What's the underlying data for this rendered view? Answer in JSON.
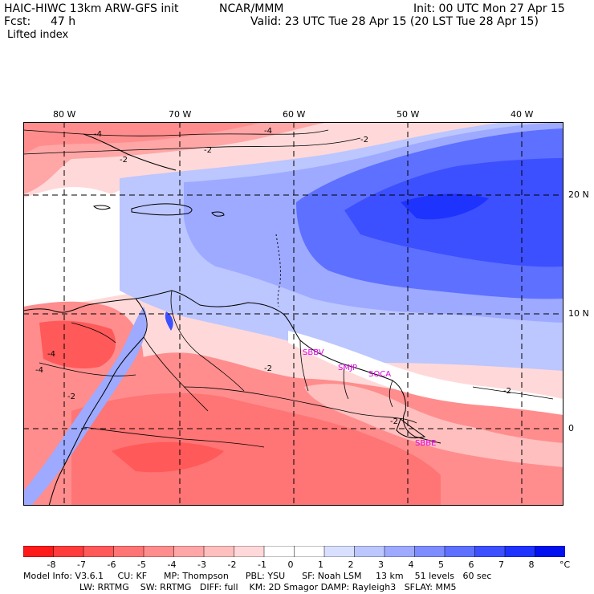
{
  "header": {
    "model_line": "HAIC-HIWC 13km ARW-GFS init",
    "org": "NCAR/MMM",
    "init": "Init: 00 UTC Mon 27 Apr 15",
    "fcst_label": "Fcst:",
    "fcst_value": "47 h",
    "valid": "Valid: 23 UTC Tue 28 Apr 15 (20 LST Tue 28 Apr 15)",
    "field": "Lifted index"
  },
  "lon_labels": [
    "80 W",
    "70 W",
    "60 W",
    "50 W",
    "40 W"
  ],
  "lat_labels": [
    "20 N",
    "10 N",
    "0"
  ],
  "stations": [
    "SBBV",
    "SMJP",
    "SOCA",
    "SBBE"
  ],
  "contour_labels": [
    "-4",
    "-4",
    "-2",
    "-2",
    "-2",
    "-4",
    "-2",
    "-4",
    "-2",
    "-2",
    "-2"
  ],
  "colorbar": {
    "labels": [
      "-8",
      "-7",
      "-6",
      "-5",
      "-4",
      "-3",
      "-2",
      "-1",
      "0",
      "1",
      "2",
      "3",
      "4",
      "5",
      "6",
      "7",
      "8"
    ],
    "unit": "°C",
    "colors": [
      "#ff1a1a",
      "#ff3b3b",
      "#ff5959",
      "#ff7474",
      "#ff8d8d",
      "#ffa6a6",
      "#ffbfbf",
      "#ffd9d9",
      "#ffffff",
      "#ffffff",
      "#d9e0ff",
      "#bcc6ff",
      "#9daaff",
      "#7d8dff",
      "#5e70ff",
      "#3c50ff",
      "#1f33ff",
      "#0010ee"
    ]
  },
  "footer": {
    "line1": "Model Info: V3.6.1     CU: KF      MP: Thompson      PBL: YSU      SF: Noah LSM     13 km    51 levels   60 sec",
    "line2": "LW: RRTMG    SW: RRTMG   DIFF: full    KM: 2D Smagor DAMP: Rayleigh3   SFLAY: MM5"
  },
  "colors": {
    "neg_light": "#ffd9d9",
    "neg_mid": "#ff8d8d",
    "neg_strong": "#ff3b3b",
    "pos_light": "#d9e0ff",
    "pos_mid": "#9daaff",
    "pos_strong": "#3c50ff",
    "station": "#e000e0"
  }
}
